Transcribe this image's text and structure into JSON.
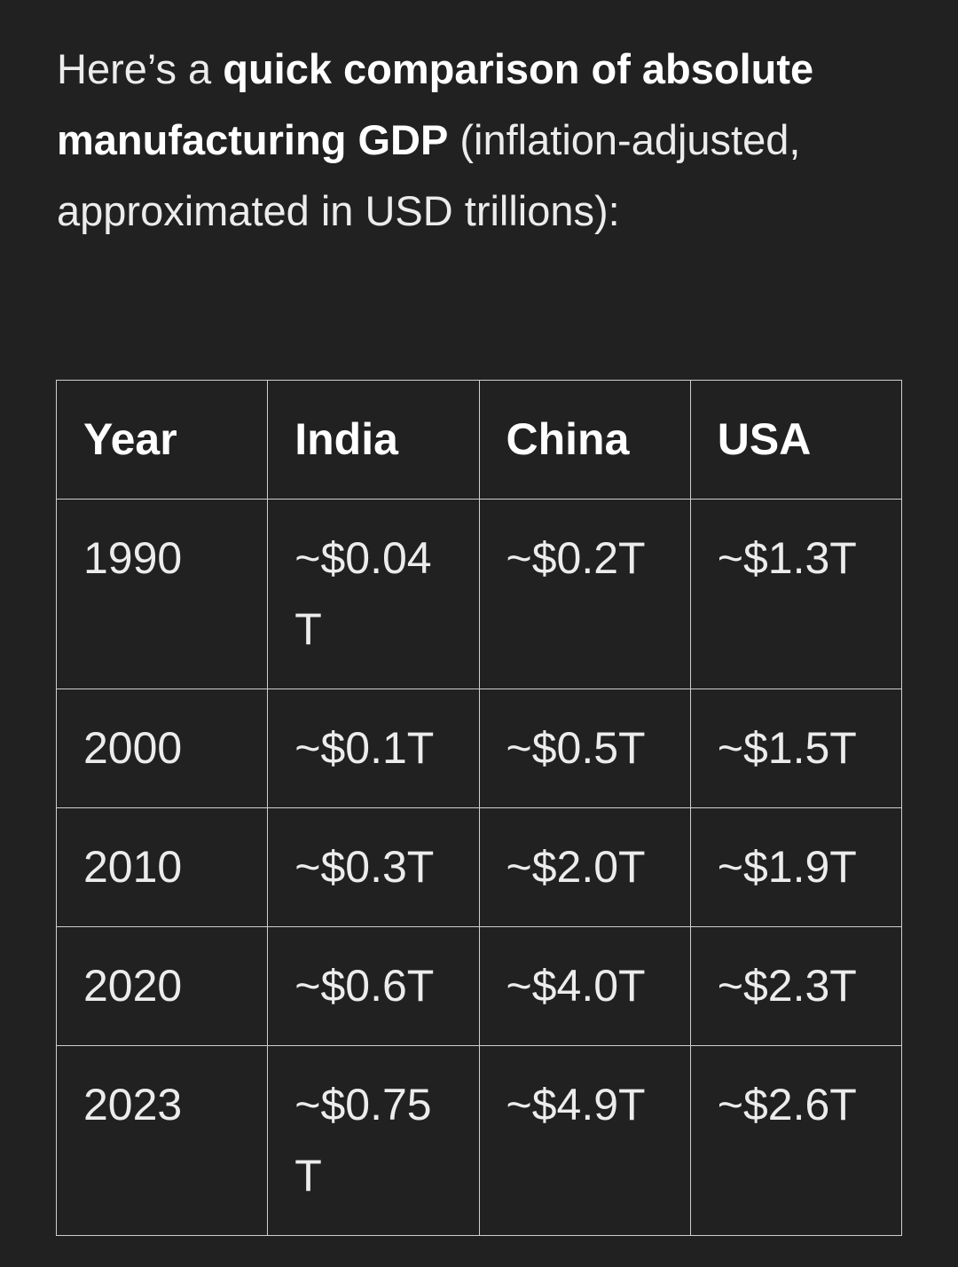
{
  "intro": {
    "before": "Here’s a ",
    "bold": "quick comparison of absolute manufacturing GDP",
    "after": " (inflation-adjusted, approximated in USD trillions):"
  },
  "table": {
    "header": [
      "Year",
      "India",
      "China",
      "USA"
    ],
    "rows": [
      [
        "1990",
        "~$0.04T",
        "~$0.2T",
        "~$1.3T"
      ],
      [
        "2000",
        "~$0.1T",
        "~$0.5T",
        "~$1.5T"
      ],
      [
        "2010",
        "~$0.3T",
        "~$2.0T",
        "~$1.9T"
      ],
      [
        "2020",
        "~$0.6T",
        "~$4.0T",
        "~$2.3T"
      ],
      [
        "2023",
        "~$0.75T",
        "~$4.9T",
        "~$2.6T"
      ]
    ]
  }
}
